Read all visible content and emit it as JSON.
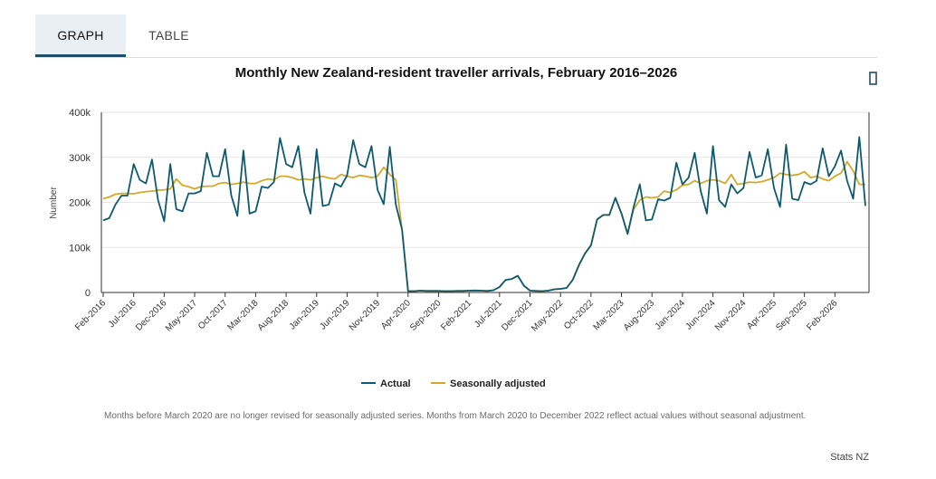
{
  "tabs": [
    {
      "label": "GRAPH",
      "active": true
    },
    {
      "label": "TABLE",
      "active": false
    }
  ],
  "menu_icon": "menu-icon",
  "colors": {
    "actual": "#0d5a6e",
    "seasonal": "#d4a82a",
    "axis": "#333333",
    "grid": "#e6e6e6"
  },
  "chart_data": {
    "type": "line",
    "title": "Monthly New Zealand-resident traveller arrivals, February 2016–2026",
    "xlabel": "",
    "ylabel": "Number",
    "ylim": [
      0,
      400000
    ],
    "yticks": [
      0,
      100000,
      200000,
      300000,
      400000
    ],
    "ytick_labels": [
      "0",
      "100k",
      "200k",
      "300k",
      "400k"
    ],
    "start": "2016-02",
    "end": "2026-02",
    "xtick_labels": [
      "Feb-2016",
      "Jul-2016",
      "Dec-2016",
      "May-2017",
      "Oct-2017",
      "Mar-2018",
      "Aug-2018",
      "Jan-2019",
      "Jun-2019",
      "Nov-2019",
      "Apr-2020",
      "Sep-2020",
      "Feb-2021",
      "Jul-2021",
      "Dec-2021",
      "May-2022",
      "Oct-2022",
      "Mar-2023",
      "Aug-2023",
      "Jan-2024",
      "Jun-2024",
      "Nov-2024",
      "Apr-2025",
      "Sep-2025",
      "Feb-2026"
    ],
    "xtick_every_months": 5,
    "series": [
      {
        "name": "Actual",
        "values": [
          160000,
          165000,
          195000,
          215000,
          215000,
          285000,
          250000,
          242000,
          295000,
          205000,
          158000,
          285000,
          185000,
          180000,
          220000,
          220000,
          225000,
          310000,
          258000,
          258000,
          318000,
          215000,
          170000,
          315000,
          175000,
          180000,
          235000,
          232000,
          245000,
          343000,
          285000,
          278000,
          325000,
          222000,
          175000,
          318000,
          192000,
          195000,
          242000,
          235000,
          260000,
          338000,
          285000,
          278000,
          325000,
          228000,
          196000,
          323000,
          195000,
          140000,
          3000,
          3000,
          4000,
          3500,
          3500,
          3500,
          3000,
          3000,
          3500,
          3500,
          4000,
          4500,
          4000,
          3500,
          5000,
          12000,
          28000,
          30000,
          37000,
          15000,
          4000,
          3500,
          3000,
          4000,
          7000,
          8000,
          10000,
          28000,
          60000,
          86000,
          105000,
          162000,
          172000,
          172000,
          210000,
          175000,
          130000,
          190000,
          240000,
          160000,
          162000,
          207000,
          204000,
          210000,
          288000,
          240000,
          255000,
          310000,
          225000,
          175000,
          325000,
          205000,
          190000,
          240000,
          220000,
          232000,
          312000,
          255000,
          260000,
          318000,
          232000,
          190000,
          328000,
          208000,
          205000,
          245000,
          240000,
          248000,
          320000,
          258000,
          280000,
          315000,
          248000,
          208000,
          345000,
          192000
        ]
      },
      {
        "name": "Seasonally adjusted",
        "values": [
          208000,
          212000,
          218000,
          220000,
          220000,
          219000,
          222000,
          224000,
          225000,
          227000,
          228000,
          230000,
          252000,
          238000,
          235000,
          230000,
          235000,
          236000,
          236000,
          242000,
          244000,
          240000,
          242000,
          245000,
          242000,
          242000,
          248000,
          252000,
          250000,
          258000,
          258000,
          255000,
          250000,
          252000,
          250000,
          255000,
          258000,
          254000,
          252000,
          262000,
          258000,
          255000,
          260000,
          258000,
          255000,
          258000,
          278000,
          262000,
          250000,
          140000,
          3000,
          3000,
          4000,
          3500,
          3500,
          3500,
          3000,
          3000,
          3500,
          3500,
          4000,
          4500,
          4000,
          3500,
          5000,
          12000,
          28000,
          30000,
          37000,
          15000,
          4000,
          3500,
          3000,
          4000,
          7000,
          8000,
          10000,
          28000,
          60000,
          86000,
          105000,
          162000,
          172000,
          172000,
          210000,
          175000,
          130000,
          185000,
          205000,
          212000,
          210000,
          212000,
          225000,
          222000,
          228000,
          238000,
          240000,
          248000,
          242000,
          248000,
          250000,
          248000,
          242000,
          262000,
          240000,
          242000,
          245000,
          244000,
          246000,
          250000,
          255000,
          265000,
          262000,
          260000,
          262000,
          268000,
          255000,
          258000,
          252000,
          248000,
          258000,
          265000,
          290000,
          270000,
          240000,
          240000
        ]
      }
    ]
  },
  "legend": [
    {
      "label": "Actual"
    },
    {
      "label": "Seasonally adjusted"
    }
  ],
  "footnote": "Months before March 2020 are no longer revised for seasonally adjusted series. Months from March 2020 to December 2022 reflect actual values without seasonal adjustment.",
  "source": "Stats NZ"
}
